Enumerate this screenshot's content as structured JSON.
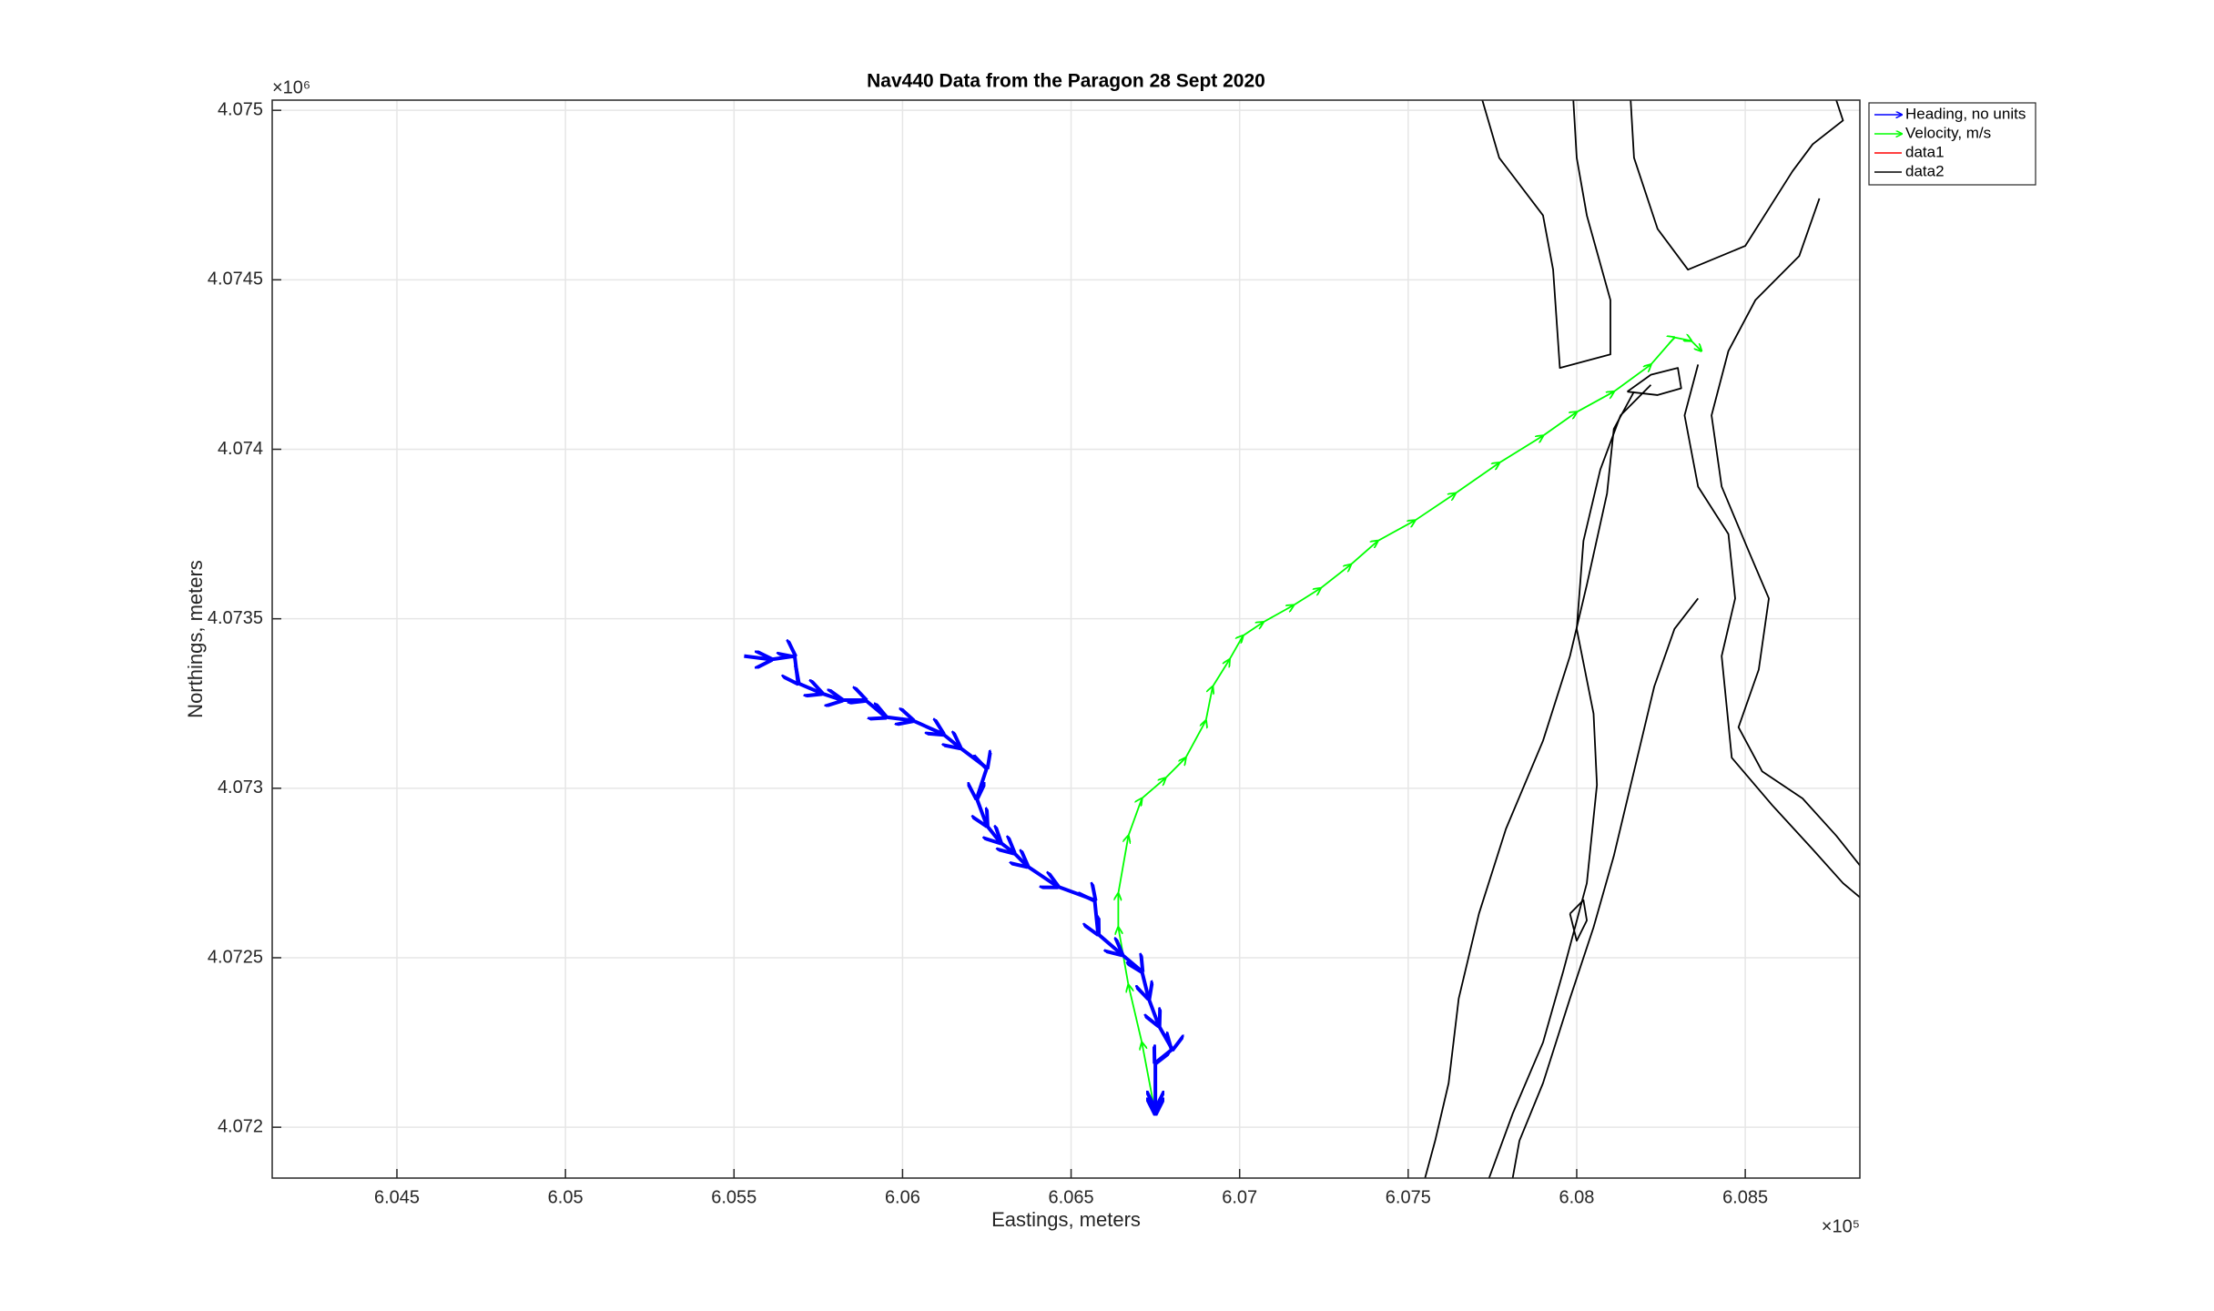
{
  "chart_data": {
    "type": "line",
    "title": "Nav440 Data from the Paragon 28 Sept 2020",
    "xlabel": "Eastings, meters",
    "ylabel": "Northings, meters",
    "x_exponent": "×10⁵",
    "y_exponent": "×10⁶",
    "xlim": [
      6.0413,
      6.0884
    ],
    "ylim": [
      4.07185,
      4.07503
    ],
    "xticks": [
      6.045,
      6.05,
      6.055,
      6.06,
      6.065,
      6.07,
      6.075,
      6.08,
      6.085
    ],
    "yticks": [
      4.072,
      4.0725,
      4.073,
      4.0735,
      4.074,
      4.0745,
      4.075
    ],
    "grid": true,
    "legend": "northeast outside",
    "series": [
      {
        "name": "Heading, no units",
        "color": "#0000ff",
        "x": [
          6.0553,
          6.0561,
          6.0568,
          6.0569,
          6.0576,
          6.0582,
          6.0589,
          6.0595,
          6.0603,
          6.0612,
          6.0617,
          6.0625,
          6.0622,
          6.0625,
          6.0629,
          6.0633,
          6.0637,
          6.0646,
          6.0657,
          6.0658,
          6.0665,
          6.0671,
          6.0673,
          6.0676,
          6.068,
          6.0675,
          6.0675,
          6.0675
        ],
        "values": [
          4.07339,
          4.07338,
          4.07339,
          4.07331,
          4.07328,
          4.07326,
          4.07326,
          4.07321,
          4.0732,
          4.07316,
          4.07312,
          4.07306,
          4.07297,
          4.07289,
          4.07284,
          4.07281,
          4.07277,
          4.07271,
          4.07267,
          4.07257,
          4.07251,
          4.07246,
          4.07238,
          4.0723,
          4.07223,
          4.07219,
          4.07206,
          4.07204
        ]
      },
      {
        "name": "Velocity, m/s",
        "color": "#00ff00",
        "x": [
          6.0675,
          6.0671,
          6.0667,
          6.0664,
          6.0664,
          6.0667,
          6.0671,
          6.0678,
          6.0684,
          6.069,
          6.0692,
          6.0697,
          6.0701,
          6.0707,
          6.0716,
          6.0724,
          6.0733,
          6.0741,
          6.0752,
          6.0764,
          6.0777,
          6.079,
          6.08,
          6.0811,
          6.0822,
          6.0829,
          6.0834,
          6.0837
        ],
        "values": [
          4.07204,
          4.07225,
          4.07242,
          4.07259,
          4.07269,
          4.07286,
          4.07297,
          4.07303,
          4.07309,
          4.0732,
          4.0733,
          4.07338,
          4.07345,
          4.07349,
          4.07354,
          4.07359,
          4.07366,
          4.07373,
          4.07379,
          4.07387,
          4.07396,
          4.07404,
          4.07411,
          4.07417,
          4.07425,
          4.07433,
          4.07432,
          4.07429
        ]
      },
      {
        "name": "data1",
        "color": "#ff0000",
        "x": [],
        "values": []
      },
      {
        "name": "data2",
        "color": "#000000",
        "x": [
          6.0772,
          6.0777,
          6.079,
          6.0793,
          6.0795,
          6.081,
          6.081,
          6.0803,
          6.08,
          6.0799,
          null,
          6.0816,
          6.0817,
          6.0824,
          6.0833,
          6.085,
          6.0864,
          6.087,
          6.0879,
          6.0877,
          null,
          6.0872,
          6.0866,
          6.0853,
          6.0845,
          6.084,
          6.0843,
          6.0851,
          6.0857,
          6.0854,
          6.0848,
          6.0855,
          6.0867,
          6.0877,
          6.0885,
          null,
          6.0836,
          6.0832,
          6.0836,
          6.0845,
          6.0847,
          6.0843,
          6.0846,
          6.0858,
          6.087,
          6.0879,
          6.0885,
          null,
          6.0817,
          6.0811,
          6.0809,
          6.0803,
          6.0798,
          6.079,
          6.0779,
          6.0771,
          6.0765,
          6.0762,
          6.0758,
          6.0755,
          null,
          6.0822,
          6.0813,
          6.0807,
          6.0802,
          6.08,
          6.0805,
          6.0806,
          6.0803,
          6.0796,
          6.079,
          6.0781,
          6.0774,
          null,
          6.0836,
          6.0829,
          6.0823,
          6.0817,
          6.0811,
          6.0805,
          6.0798,
          6.079,
          6.0783,
          6.0781,
          null,
          6.0798,
          6.0802,
          6.0803,
          6.08,
          6.0798,
          null,
          6.0815,
          6.0822,
          6.083,
          6.0831,
          6.0824,
          6.0815
        ],
        "values": [
          4.07503,
          4.07486,
          4.07469,
          4.07453,
          4.07424,
          4.07428,
          4.07444,
          4.07469,
          4.07486,
          4.07503,
          null,
          4.07503,
          4.07486,
          4.07465,
          4.07453,
          4.0746,
          4.07482,
          4.0749,
          4.07497,
          4.07503,
          null,
          4.07474,
          4.07457,
          4.07444,
          4.07429,
          4.0741,
          4.07389,
          4.0737,
          4.07356,
          4.07335,
          4.07318,
          4.07305,
          4.07297,
          4.07286,
          4.07276,
          null,
          4.07425,
          4.0741,
          4.07389,
          4.07375,
          4.07356,
          4.07339,
          4.07309,
          4.07295,
          4.07282,
          4.07272,
          4.07267,
          null,
          4.07417,
          4.07406,
          4.07387,
          4.0736,
          4.07339,
          4.07314,
          4.07288,
          4.07263,
          4.07238,
          4.07213,
          4.07196,
          4.07185,
          null,
          4.07419,
          4.0741,
          4.07394,
          4.07373,
          4.07347,
          4.07322,
          4.07301,
          4.07272,
          4.07246,
          4.07225,
          4.07204,
          4.07185,
          null,
          4.07356,
          4.07347,
          4.0733,
          4.07305,
          4.0728,
          4.07259,
          4.07238,
          4.07213,
          4.07196,
          4.07185,
          null,
          4.07263,
          4.07267,
          4.07261,
          4.07255,
          4.07263,
          null,
          4.07417,
          4.07422,
          4.07424,
          4.07418,
          4.07416,
          4.07417
        ]
      }
    ]
  }
}
